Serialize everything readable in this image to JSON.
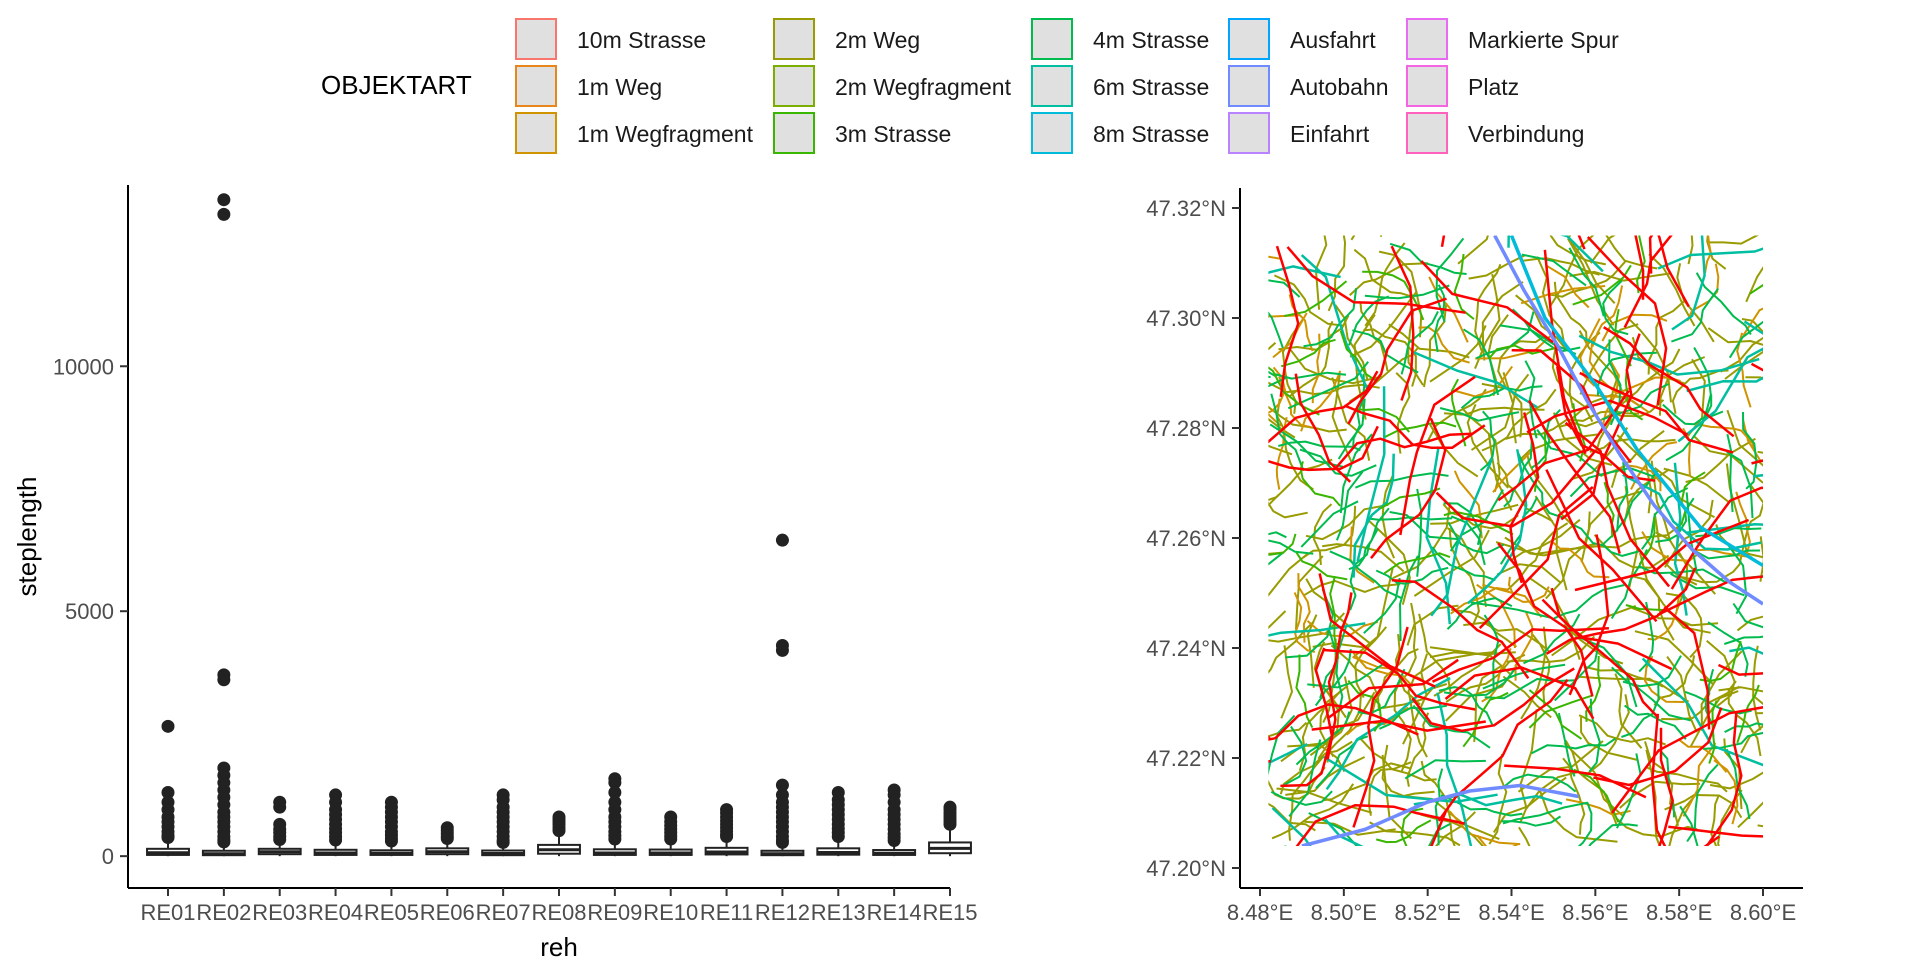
{
  "legend": {
    "title": "OBJEKTART",
    "items": [
      {
        "label": "10m Strasse",
        "color": "#F8766D"
      },
      {
        "label": "1m Weg",
        "color": "#E7861B"
      },
      {
        "label": "1m Wegfragment",
        "color": "#D09400"
      },
      {
        "label": "2m Weg",
        "color": "#999C00"
      },
      {
        "label": "2m Wegfragment",
        "color": "#7CAE00"
      },
      {
        "label": "3m Strasse",
        "color": "#39B600"
      },
      {
        "label": "4m Strasse",
        "color": "#00BB4E"
      },
      {
        "label": "6m Strasse",
        "color": "#00BFA0"
      },
      {
        "label": "8m Strasse",
        "color": "#00BBDA"
      },
      {
        "label": "Ausfahrt",
        "color": "#00A5FF"
      },
      {
        "label": "Autobahn",
        "color": "#6F8BFF"
      },
      {
        "label": "Einfahrt",
        "color": "#B983FF"
      },
      {
        "label": "Markierte Spur",
        "color": "#E76BF3"
      },
      {
        "label": "Platz",
        "color": "#F564E3"
      },
      {
        "label": "Verbindung",
        "color": "#FF62BC"
      }
    ]
  },
  "chart_data": [
    {
      "type": "box",
      "xlabel": "reh",
      "ylabel": "steplength",
      "ylim": [
        -650,
        13700
      ],
      "y_ticks": [
        0,
        5000,
        10000
      ],
      "categories": [
        "RE01",
        "RE02",
        "RE03",
        "RE04",
        "RE05",
        "RE06",
        "RE07",
        "RE08",
        "RE09",
        "RE10",
        "RE11",
        "RE12",
        "RE13",
        "RE14",
        "RE15"
      ],
      "boxes": [
        {
          "q1": 25,
          "median": 70,
          "q3": 150,
          "whisker_low": 0,
          "whisker_high": 330,
          "outliers": [
            2650,
            1300,
            1100,
            950,
            800,
            700,
            600,
            500,
            420,
            380
          ]
        },
        {
          "q1": 20,
          "median": 50,
          "q3": 110,
          "whisker_low": 0,
          "whisker_high": 250,
          "outliers": [
            13400,
            13100,
            3700,
            3600,
            1800,
            1650,
            1500,
            1350,
            1200,
            1050,
            900,
            800,
            700,
            600,
            500,
            400,
            330,
            290
          ]
        },
        {
          "q1": 40,
          "median": 90,
          "q3": 150,
          "whisker_low": 0,
          "whisker_high": 300,
          "outliers": [
            1100,
            1000,
            650,
            550,
            480,
            400,
            340
          ]
        },
        {
          "q1": 25,
          "median": 65,
          "q3": 130,
          "whisker_low": 0,
          "whisker_high": 290,
          "outliers": [
            1250,
            1100,
            950,
            850,
            750,
            650,
            560,
            480,
            400,
            330
          ]
        },
        {
          "q1": 25,
          "median": 60,
          "q3": 120,
          "whisker_low": 0,
          "whisker_high": 270,
          "outliers": [
            1100,
            1000,
            900,
            800,
            700,
            600,
            500,
            430,
            360,
            310
          ]
        },
        {
          "q1": 40,
          "median": 90,
          "q3": 160,
          "whisker_low": 0,
          "whisker_high": 330,
          "outliers": [
            580,
            520,
            460,
            400,
            360
          ]
        },
        {
          "q1": 20,
          "median": 55,
          "q3": 115,
          "whisker_low": 0,
          "whisker_high": 250,
          "outliers": [
            1250,
            1150,
            1000,
            900,
            800,
            700,
            600,
            500,
            400,
            320,
            280
          ]
        },
        {
          "q1": 50,
          "median": 130,
          "q3": 230,
          "whisker_low": 0,
          "whisker_high": 480,
          "outliers": [
            800,
            750,
            700,
            650,
            580,
            520
          ]
        },
        {
          "q1": 25,
          "median": 65,
          "q3": 140,
          "whisker_low": 0,
          "whisker_high": 300,
          "outliers": [
            1580,
            1500,
            1300,
            1100,
            950,
            800,
            700,
            600,
            500,
            420,
            350
          ]
        },
        {
          "q1": 25,
          "median": 65,
          "q3": 135,
          "whisker_low": 0,
          "whisker_high": 290,
          "outliers": [
            800,
            700,
            620,
            550,
            480,
            410,
            350
          ]
        },
        {
          "q1": 35,
          "median": 85,
          "q3": 170,
          "whisker_low": 0,
          "whisker_high": 350,
          "outliers": [
            950,
            880,
            800,
            720,
            650,
            580,
            510,
            440,
            400
          ]
        },
        {
          "q1": 20,
          "median": 50,
          "q3": 110,
          "whisker_low": 0,
          "whisker_high": 250,
          "outliers": [
            6450,
            4300,
            4200,
            1450,
            1250,
            1100,
            1000,
            900,
            800,
            700,
            600,
            500,
            400,
            320,
            280
          ]
        },
        {
          "q1": 30,
          "median": 75,
          "q3": 160,
          "whisker_low": 0,
          "whisker_high": 340,
          "outliers": [
            1300,
            1150,
            1050,
            950,
            850,
            750,
            650,
            560,
            480,
            400
          ]
        },
        {
          "q1": 25,
          "median": 60,
          "q3": 125,
          "whisker_low": 0,
          "whisker_high": 270,
          "outliers": [
            1350,
            1250,
            1100,
            950,
            850,
            750,
            650,
            550,
            450,
            380,
            320
          ]
        },
        {
          "q1": 60,
          "median": 160,
          "q3": 280,
          "whisker_low": 0,
          "whisker_high": 600,
          "outliers": [
            1000,
            950,
            880,
            820,
            760,
            700,
            650
          ]
        }
      ]
    },
    {
      "type": "map",
      "xlim": [
        8.48,
        8.6
      ],
      "ylim": [
        47.2,
        47.32
      ],
      "x_ticks": [
        "8.48°E",
        "8.50°E",
        "8.52°E",
        "8.54°E",
        "8.56°E",
        "8.58°E",
        "8.60°E"
      ],
      "y_ticks": [
        "47.20°N",
        "47.22°N",
        "47.24°N",
        "47.26°N",
        "47.28°N",
        "47.30°N",
        "47.32°N"
      ],
      "data_extent": {
        "lon": [
          8.482,
          8.6
        ],
        "lat": [
          47.204,
          47.315
        ]
      },
      "highways": [
        {
          "category": "Autobahn",
          "points": [
            [
              8.536,
              47.315
            ],
            [
              8.543,
              47.305
            ],
            [
              8.551,
              47.295
            ],
            [
              8.558,
              47.285
            ],
            [
              8.566,
              47.275
            ],
            [
              8.574,
              47.266
            ],
            [
              8.583,
              47.258
            ],
            [
              8.592,
              47.252
            ],
            [
              8.6,
              47.248
            ]
          ]
        },
        {
          "category": "Autobahn",
          "points": [
            [
              8.49,
              47.204
            ],
            [
              8.505,
              47.207
            ],
            [
              8.52,
              47.212
            ],
            [
              8.53,
              47.214
            ],
            [
              8.542,
              47.215
            ],
            [
              8.556,
              47.213
            ]
          ]
        },
        {
          "category": "8m Strasse",
          "points": [
            [
              8.54,
              47.315
            ],
            [
              8.548,
              47.3
            ],
            [
              8.56,
              47.288
            ],
            [
              8.57,
              47.276
            ],
            [
              8.585,
              47.262
            ],
            [
              8.6,
              47.255
            ]
          ]
        }
      ]
    }
  ]
}
